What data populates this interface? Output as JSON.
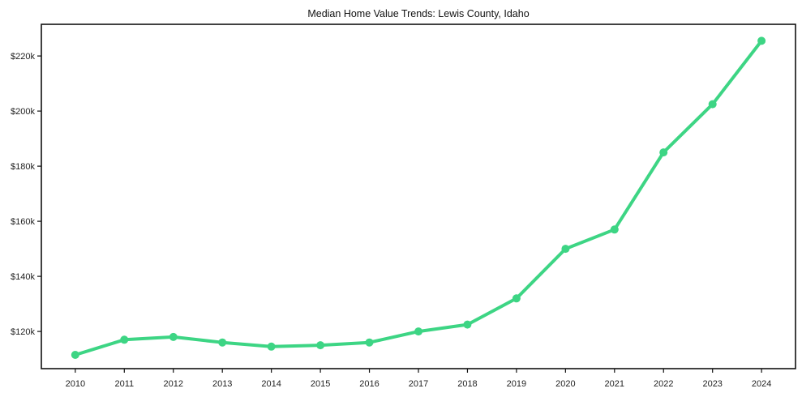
{
  "chart_data": {
    "type": "line",
    "title": "Median Home Value Trends: Lewis County, Idaho",
    "x": [
      2010,
      2011,
      2012,
      2013,
      2014,
      2015,
      2016,
      2017,
      2018,
      2019,
      2020,
      2021,
      2022,
      2023,
      2024
    ],
    "series": [
      {
        "name": "Median Home Value",
        "values": [
          111500,
          117000,
          118000,
          116000,
          114500,
          115000,
          116000,
          120000,
          122500,
          132000,
          150000,
          157000,
          185000,
          202500,
          225500
        ]
      }
    ],
    "xlabel": "",
    "ylabel": "",
    "ylim": [
      106500,
      231500
    ],
    "y_ticks": {
      "values": [
        120000,
        140000,
        160000,
        180000,
        200000,
        220000
      ],
      "labels": [
        "$120k",
        "$140k",
        "$160k",
        "$180k",
        "$200k",
        "$220k"
      ]
    },
    "grid": false,
    "legend": null,
    "line_color": "#3dd584",
    "marker": "circle",
    "frame_color": "#111111",
    "background_color": "#ffffff"
  }
}
